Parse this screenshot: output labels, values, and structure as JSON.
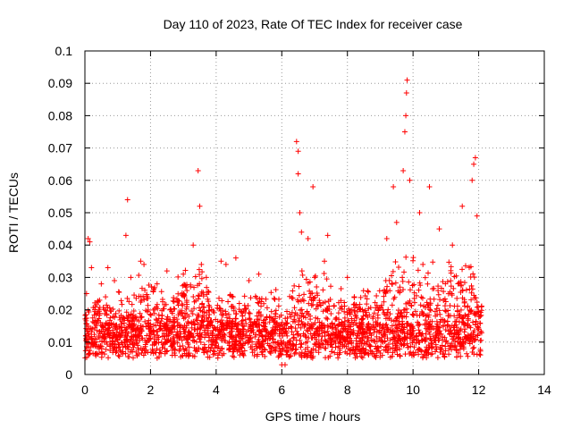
{
  "chart_data": {
    "type": "scatter",
    "title": "Day 110 of 2023, Rate Of TEC Index for receiver case",
    "xlabel": "GPS time / hours",
    "ylabel": "ROTI / TECUs",
    "xlim": [
      0,
      14
    ],
    "ylim": [
      0,
      0.1
    ],
    "xticks": [
      "0",
      "2",
      "4",
      "6",
      "8",
      "10",
      "12",
      "14"
    ],
    "yticks": [
      "0",
      "0.01",
      "0.02",
      "0.03",
      "0.04",
      "0.05",
      "0.06",
      "0.07",
      "0.08",
      "0.09",
      "0.1"
    ],
    "grid": true,
    "marker": "+",
    "color": "#ff0000",
    "series": [
      {
        "x_range": [
          0,
          12.1
        ],
        "typical_range": [
          0.005,
          0.02
        ],
        "points": [
          [
            0.05,
            0.025
          ],
          [
            0.1,
            0.042
          ],
          [
            0.15,
            0.041
          ],
          [
            0.2,
            0.033
          ],
          [
            0.3,
            0.02
          ],
          [
            0.5,
            0.028
          ],
          [
            0.7,
            0.033
          ],
          [
            0.9,
            0.029
          ],
          [
            1.3,
            0.054
          ],
          [
            1.25,
            0.043
          ],
          [
            1.4,
            0.03
          ],
          [
            1.7,
            0.035
          ],
          [
            1.8,
            0.034
          ],
          [
            2.2,
            0.028
          ],
          [
            2.5,
            0.032
          ],
          [
            3.0,
            0.031
          ],
          [
            3.3,
            0.04
          ],
          [
            3.45,
            0.063
          ],
          [
            3.5,
            0.052
          ],
          [
            3.55,
            0.034
          ],
          [
            3.7,
            0.03
          ],
          [
            4.15,
            0.035
          ],
          [
            4.3,
            0.034
          ],
          [
            4.6,
            0.036
          ],
          [
            5.0,
            0.029
          ],
          [
            5.3,
            0.031
          ],
          [
            6.0,
            0.003
          ],
          [
            6.1,
            0.003
          ],
          [
            6.45,
            0.072
          ],
          [
            6.5,
            0.069
          ],
          [
            6.5,
            0.062
          ],
          [
            6.55,
            0.05
          ],
          [
            6.6,
            0.044
          ],
          [
            6.8,
            0.042
          ],
          [
            6.95,
            0.058
          ],
          [
            7.0,
            0.03
          ],
          [
            7.3,
            0.035
          ],
          [
            7.4,
            0.043
          ],
          [
            8.0,
            0.03
          ],
          [
            9.2,
            0.042
          ],
          [
            9.4,
            0.058
          ],
          [
            9.5,
            0.047
          ],
          [
            9.7,
            0.063
          ],
          [
            9.75,
            0.075
          ],
          [
            9.78,
            0.08
          ],
          [
            9.8,
            0.087
          ],
          [
            9.82,
            0.091
          ],
          [
            9.9,
            0.06
          ],
          [
            10.2,
            0.05
          ],
          [
            10.5,
            0.058
          ],
          [
            10.8,
            0.045
          ],
          [
            11.2,
            0.04
          ],
          [
            11.5,
            0.052
          ],
          [
            11.8,
            0.06
          ],
          [
            11.85,
            0.065
          ],
          [
            11.9,
            0.067
          ],
          [
            11.95,
            0.049
          ],
          [
            12.05,
            0.018
          ]
        ]
      }
    ]
  }
}
